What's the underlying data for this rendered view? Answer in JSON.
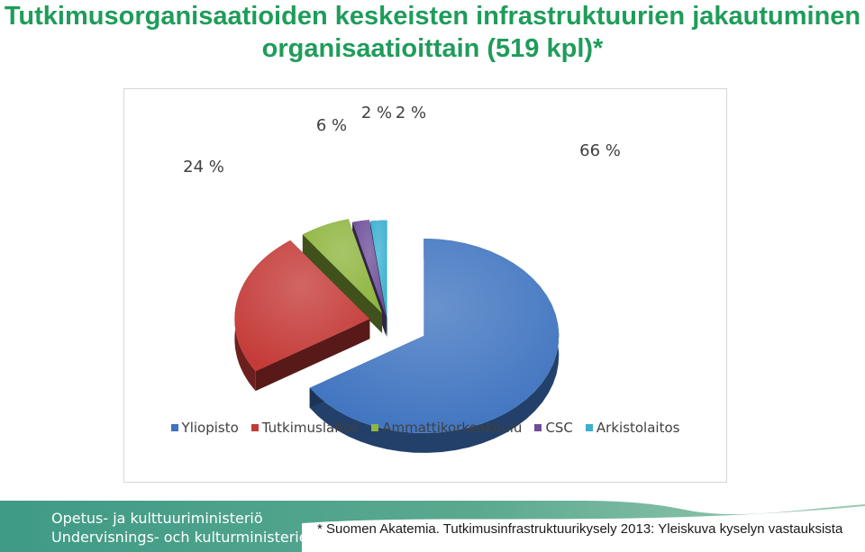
{
  "slide": {
    "title": "Tutkimusorganisaatioiden keskeisten infrastruktuurien jakautuminen organisaatioittain (519 kpl)*"
  },
  "chart_data": {
    "type": "pie",
    "title": "",
    "categories": [
      "Yliopisto",
      "Tutkimuslaitos",
      "Ammattikorkeakoulu",
      "CSC",
      "Arkistolaitos"
    ],
    "values": [
      66,
      24,
      6,
      2,
      2
    ],
    "labels": [
      "66 %",
      "24 %",
      "6 %",
      "2 %",
      "2 %"
    ],
    "colors": [
      "#3f74c0",
      "#c43a37",
      "#8fb53f",
      "#6e4f9a",
      "#3bb0cf"
    ],
    "legend_position": "bottom",
    "exploded": true,
    "three_d": true
  },
  "footer": {
    "ministry_fi": "Opetus- ja kulttuuriministeriö",
    "ministry_sv": "Undervisnings- och kulturministeriet",
    "footnote": "* Suomen Akatemia. Tutkimusinfrastruktuurikysely 2013: Yleiskuva kyselyn vastauksista"
  }
}
